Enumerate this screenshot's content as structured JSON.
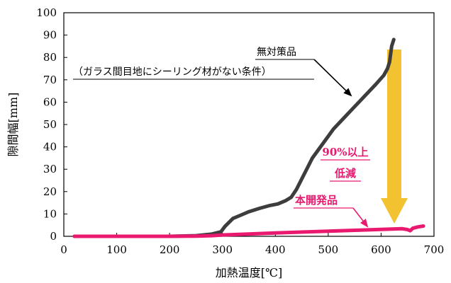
{
  "colors": {
    "untreated": "#3d3d3d",
    "developed": "#e8196e",
    "arrow": "#f2c230",
    "arrow_edge": "#e0a800"
  },
  "chart_data": {
    "type": "line",
    "title": "",
    "xlabel": "加熱温度[℃]",
    "ylabel": "隙間幅[mm]",
    "xlim": [
      0,
      700
    ],
    "ylim": [
      0,
      100
    ],
    "xticks": [
      0,
      100,
      200,
      300,
      400,
      500,
      600,
      700
    ],
    "yticks": [
      0,
      10,
      20,
      30,
      40,
      50,
      60,
      70,
      80,
      90,
      100
    ],
    "grid": false,
    "series": [
      {
        "name": "無対策品",
        "note": "（ガラス間目地にシーリング材がない条件）",
        "x": [
          20,
          100,
          200,
          250,
          280,
          297,
          305,
          320,
          335,
          350,
          370,
          390,
          405,
          420,
          430,
          440,
          455,
          470,
          490,
          510,
          530,
          550,
          570,
          590,
          605,
          612,
          616,
          620,
          624
        ],
        "y": [
          0,
          0,
          0,
          0.3,
          1,
          2,
          4.5,
          8,
          9.5,
          11,
          12.5,
          13.8,
          14.5,
          16,
          17.5,
          21,
          28,
          35,
          41.5,
          48,
          53,
          58,
          63,
          68,
          72,
          75,
          78,
          85,
          88
        ]
      },
      {
        "name": "本開発品",
        "x": [
          20,
          100,
          200,
          250,
          280,
          300,
          350,
          400,
          450,
          500,
          550,
          600,
          640,
          650,
          655,
          660,
          670,
          680
        ],
        "y": [
          0,
          0,
          0,
          0.1,
          0.3,
          0.6,
          1.0,
          1.5,
          1.9,
          2.3,
          2.7,
          3.1,
          3.4,
          3.0,
          2.5,
          3.6,
          4.2,
          4.6
        ]
      }
    ],
    "annotations": {
      "untreated_label": "無対策品",
      "untreated_note": "（ガラス間目地にシーリング材がない条件）",
      "reduction_line1": "90%以上",
      "reduction_line2": "低減",
      "developed_label": "本開発品"
    }
  }
}
